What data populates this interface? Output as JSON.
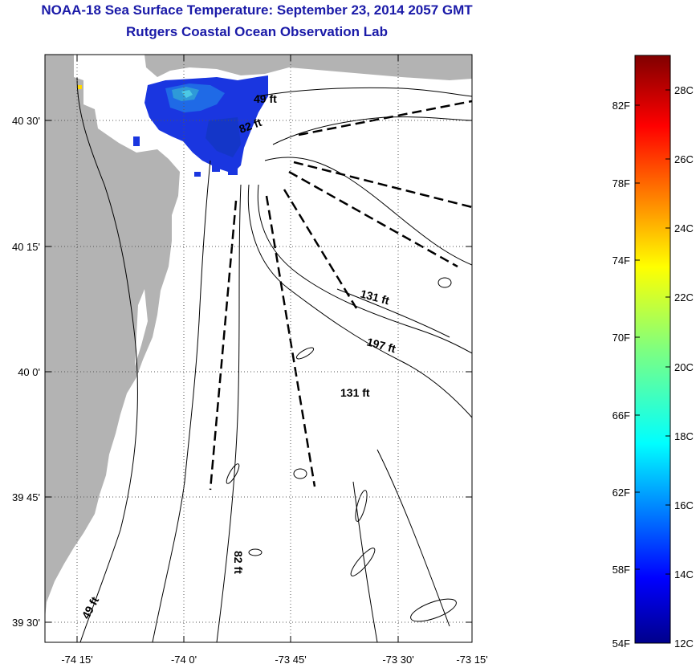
{
  "header": {
    "title": "NOAA-18 Sea Surface Temperature:  September 23, 2014 2057 GMT",
    "subtitle": "Rutgers Coastal Ocean Observation Lab"
  },
  "map": {
    "x_ticks": [
      "-74 15'",
      "-74 0'",
      "-73 45'",
      "-73 30'",
      "-73 15'"
    ],
    "y_ticks": [
      "40 30'",
      "40 15'",
      "40 0'",
      "39 45'",
      "39 30'"
    ],
    "depth_labels": [
      "49 ft",
      "82 ft",
      "131 ft",
      "197 ft",
      "131 ft",
      "82 ft",
      "49 ft"
    ],
    "colors": {
      "land": "#b3b3b3",
      "contour": "#000000",
      "grid": "#555555"
    }
  },
  "colorbar": {
    "fahrenheit": [
      "82F",
      "78F",
      "74F",
      "70F",
      "66F",
      "62F",
      "58F",
      "54F"
    ],
    "celsius": [
      "28C",
      "26C",
      "24C",
      "22C",
      "20C",
      "18C",
      "16C",
      "14C",
      "12C"
    ],
    "range_c": [
      12,
      29
    ]
  }
}
